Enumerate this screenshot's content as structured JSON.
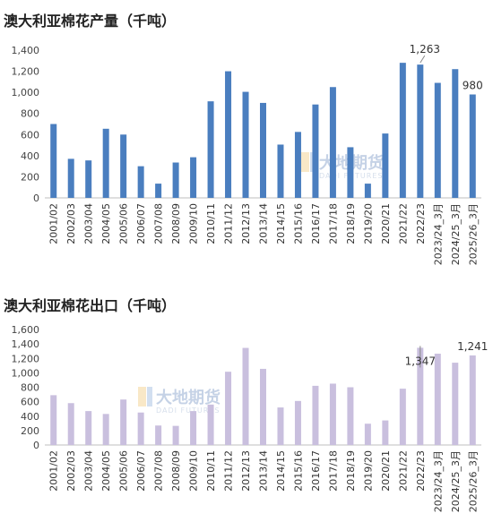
{
  "chart_data": [
    {
      "type": "bar",
      "title": "澳大利亚棉花产量（千吨）",
      "color": "#4a7ebf",
      "ylim": [
        0,
        1400
      ],
      "yticks": [
        "0",
        "200",
        "400",
        "600",
        "800",
        "1,000",
        "1,200",
        "1,400"
      ],
      "categories": [
        "2001/02",
        "2002/03",
        "2003/04",
        "2004/05",
        "2005/06",
        "2006/07",
        "2007/08",
        "2008/09",
        "2009/10",
        "2010/11",
        "2011/12",
        "2012/13",
        "2013/14",
        "2014/15",
        "2015/16",
        "2016/17",
        "2017/18",
        "2018/19",
        "2019/20",
        "2020/21",
        "2021/22",
        "2022/23",
        "2023/24_3月",
        "2024/25_3月",
        "2025/26_3月"
      ],
      "values": [
        700,
        370,
        355,
        655,
        600,
        300,
        135,
        335,
        385,
        915,
        1200,
        1005,
        900,
        505,
        625,
        885,
        1050,
        480,
        135,
        610,
        1280,
        1263,
        1090,
        1220,
        980
      ],
      "data_labels": [
        {
          "index": 21,
          "text": "1,263"
        },
        {
          "index": 24,
          "text": "980"
        }
      ],
      "grid": false
    },
    {
      "type": "bar",
      "title": "澳大利亚棉花出口（千吨）",
      "color": "#c9bfde",
      "ylim": [
        0,
        1600
      ],
      "yticks": [
        "0",
        "200",
        "400",
        "600",
        "800",
        "1,000",
        "1,200",
        "1,400",
        "1,600"
      ],
      "categories": [
        "2001/02",
        "2002/03",
        "2003/04",
        "2004/05",
        "2005/06",
        "2006/07",
        "2007/08",
        "2008/09",
        "2009/10",
        "2010/11",
        "2011/12",
        "2012/13",
        "2013/14",
        "2014/15",
        "2015/16",
        "2016/17",
        "2017/18",
        "2018/19",
        "2019/20",
        "2020/21",
        "2021/22",
        "2022/23",
        "2023/24_3月",
        "2024/25_3月",
        "2025/26_3月"
      ],
      "values": [
        690,
        580,
        470,
        430,
        630,
        450,
        270,
        265,
        470,
        560,
        1015,
        1345,
        1055,
        520,
        610,
        820,
        850,
        800,
        295,
        340,
        780,
        1347,
        1265,
        1140,
        1241
      ],
      "data_labels": [
        {
          "index": 21,
          "text": "1,347"
        },
        {
          "index": 24,
          "text": "1,241"
        }
      ],
      "grid": false
    }
  ],
  "watermark": {
    "cn": "大地期货",
    "en": "DADI FUTURES"
  }
}
